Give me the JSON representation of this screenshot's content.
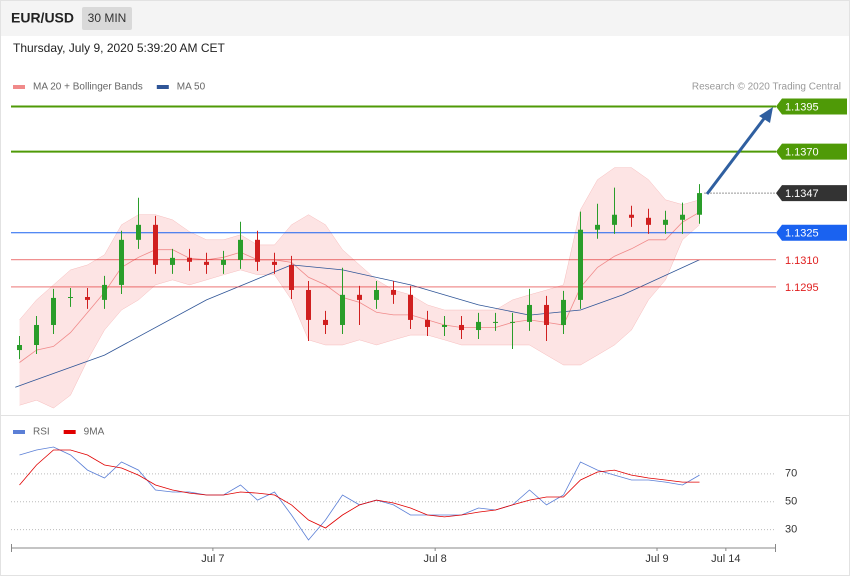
{
  "chart_data": [
    {
      "type": "candlestick",
      "title": "EUR/USD",
      "interval": "30 MIN",
      "subtitle": "Thursday, July 9, 2020 5:39:20 AM CET",
      "credit": "Research © 2020 Trading Central",
      "x": [
        2,
        6,
        10,
        14,
        18,
        22,
        26,
        30,
        34,
        38,
        42,
        46,
        50,
        54,
        58,
        62,
        66,
        70,
        74,
        78,
        82,
        86,
        90,
        94,
        98,
        102,
        106,
        110,
        114,
        118,
        122,
        126,
        130,
        134,
        138,
        142,
        146,
        150,
        154,
        158,
        162
      ],
      "open": [
        1.126,
        1.12628,
        1.12739,
        1.12889,
        1.12894,
        1.12878,
        1.12961,
        1.13211,
        1.13294,
        1.13072,
        1.13111,
        1.13089,
        1.13072,
        1.131,
        1.13211,
        1.13089,
        1.13072,
        1.12933,
        1.12767,
        1.12739,
        1.12906,
        1.12878,
        1.12933,
        1.12906,
        1.12767,
        1.12728,
        1.12739,
        1.12711,
        1.12756,
        1.12756,
        1.12756,
        1.1285,
        1.12739,
        1.12878,
        1.13267,
        1.13294,
        1.1335,
        1.13333,
        1.13294,
        1.13322,
        1.1335
      ],
      "high": [
        1.12678,
        1.12789,
        1.12939,
        1.12944,
        1.12944,
        1.13011,
        1.13261,
        1.13444,
        1.13344,
        1.13161,
        1.13161,
        1.13139,
        1.1315,
        1.13311,
        1.13261,
        1.13139,
        1.13122,
        1.12983,
        1.12817,
        1.13056,
        1.12956,
        1.12983,
        1.12983,
        1.12956,
        1.12817,
        1.12789,
        1.12789,
        1.12806,
        1.12806,
        1.12806,
        1.12939,
        1.129,
        1.12928,
        1.13367,
        1.13411,
        1.135,
        1.134,
        1.13383,
        1.13372,
        1.13417,
        1.1352
      ],
      "low": [
        1.1255,
        1.12578,
        1.12689,
        1.12839,
        1.12828,
        1.12828,
        1.12911,
        1.13161,
        1.13022,
        1.13022,
        1.13039,
        1.13022,
        1.13022,
        1.1305,
        1.13039,
        1.13022,
        1.12883,
        1.1265,
        1.12689,
        1.12689,
        1.12739,
        1.12828,
        1.12856,
        1.12717,
        1.12678,
        1.12678,
        1.12661,
        1.12661,
        1.12706,
        1.12606,
        1.12706,
        1.1265,
        1.12689,
        1.12828,
        1.13217,
        1.13244,
        1.13283,
        1.13244,
        1.13244,
        1.13244,
        1.133
      ],
      "close": [
        1.12628,
        1.12739,
        1.12889,
        1.12894,
        1.12878,
        1.12961,
        1.13211,
        1.13294,
        1.13072,
        1.13111,
        1.13089,
        1.13072,
        1.131,
        1.13211,
        1.13089,
        1.13072,
        1.12933,
        1.12767,
        1.12739,
        1.12906,
        1.12878,
        1.12933,
        1.12906,
        1.12767,
        1.12728,
        1.12739,
        1.12711,
        1.12756,
        1.12756,
        1.12756,
        1.1285,
        1.12739,
        1.12878,
        1.13267,
        1.13294,
        1.1335,
        1.13333,
        1.13294,
        1.13322,
        1.1335,
        1.1347
      ],
      "up_color": "#2a9d2a",
      "down_color": "#d01f1f",
      "bollinger": {
        "name": "MA 20 + Bollinger Bands",
        "color": "#f08a8a",
        "fill": "#fde4e4",
        "upper": [
          1.12767,
          1.12878,
          1.12961,
          1.13044,
          1.13072,
          1.13128,
          1.13294,
          1.1335,
          1.1335,
          1.13322,
          1.13256,
          1.13211,
          1.13211,
          1.13239,
          1.13183,
          1.13183,
          1.13294,
          1.1335,
          1.13294,
          1.13156,
          1.13072,
          1.12989,
          1.12933,
          1.12906,
          1.1285,
          1.12822,
          1.12822,
          1.12822,
          1.12822,
          1.12878,
          1.12906,
          1.12933,
          1.12961,
          1.13378,
          1.13544,
          1.13611,
          1.13611,
          1.13544,
          1.13433,
          1.13406,
          1.13433
        ],
        "middle": [
          1.12531,
          1.126,
          1.1262,
          1.12697,
          1.12808,
          1.1292,
          1.13058,
          1.13114,
          1.13156,
          1.13156,
          1.13109,
          1.131,
          1.13114,
          1.13142,
          1.131,
          1.131,
          1.13086,
          1.13003,
          1.12961,
          1.12892,
          1.12864,
          1.12809,
          1.12795,
          1.12795,
          1.12767,
          1.12739,
          1.12725,
          1.12725,
          1.12725,
          1.12753,
          1.12767,
          1.12753,
          1.12739,
          1.12948,
          1.13058,
          1.1312,
          1.13161,
          1.13211,
          1.13211,
          1.13309,
          1.13364
        ],
        "lower": [
          1.12294,
          1.12322,
          1.12278,
          1.1235,
          1.12544,
          1.12711,
          1.12822,
          1.12878,
          1.12961,
          1.12989,
          1.12961,
          1.12989,
          1.13017,
          1.13044,
          1.13017,
          1.13017,
          1.12878,
          1.12656,
          1.12628,
          1.12628,
          1.12656,
          1.12628,
          1.12656,
          1.12683,
          1.12683,
          1.12656,
          1.12628,
          1.12628,
          1.12628,
          1.12628,
          1.12628,
          1.12572,
          1.12517,
          1.12517,
          1.12572,
          1.12628,
          1.12711,
          1.12878,
          1.12989,
          1.13211,
          1.13294
        ]
      },
      "ma50": {
        "name": "MA 50",
        "color": "#2f5597",
        "x": [
          1,
          22,
          46,
          66,
          78,
          94,
          110,
          122,
          134,
          144,
          162
        ],
        "values": [
          1.12394,
          1.12572,
          1.12878,
          1.13072,
          1.13044,
          1.12961,
          1.1285,
          1.12794,
          1.12822,
          1.12906,
          1.131
        ]
      },
      "levels": [
        {
          "value": 1.1395,
          "label": "1.1395",
          "color": "#4f9a07",
          "line": "solid",
          "tag": "box",
          "width": 2
        },
        {
          "value": 1.137,
          "label": "1.1370",
          "color": "#4f9a07",
          "line": "solid",
          "tag": "box",
          "width": 2
        },
        {
          "value": 1.1347,
          "label": "1.1347",
          "color": "#333333",
          "line": "dotted",
          "tag": "box",
          "width": 1
        },
        {
          "value": 1.1325,
          "label": "1.1325",
          "color": "#1a62f0",
          "line": "solid",
          "tag": "box",
          "width": 1
        },
        {
          "value": 1.131,
          "label": "1.1310",
          "color": "#e02020",
          "line": "solid",
          "tag": "text",
          "width": 0.6
        },
        {
          "value": 1.1295,
          "label": "1.1295",
          "color": "#e02020",
          "line": "solid",
          "tag": "text",
          "width": 0.6
        }
      ],
      "xlim": [
        0,
        180
      ],
      "ylim": [
        1.1224,
        1.1418
      ]
    },
    {
      "type": "line",
      "x": [
        2,
        6,
        10,
        14,
        18,
        22,
        26,
        30,
        34,
        38,
        42,
        46,
        50,
        54,
        58,
        62,
        66,
        70,
        74,
        78,
        82,
        86,
        90,
        94,
        98,
        102,
        106,
        110,
        114,
        118,
        122,
        126,
        130,
        134,
        138,
        142,
        146,
        150,
        154,
        158,
        162
      ],
      "series": [
        {
          "name": "RSI",
          "color": "#5b7fd6",
          "values": [
            83.5,
            87.1,
            89.2,
            83.5,
            72.7,
            67.0,
            78.5,
            72.7,
            58.4,
            57.0,
            57.0,
            54.8,
            54.8,
            62.0,
            51.2,
            57.0,
            40.5,
            22.6,
            36.9,
            54.8,
            47.7,
            51.2,
            47.7,
            40.5,
            40.5,
            40.5,
            40.5,
            45.5,
            44.1,
            47.7,
            58.4,
            47.7,
            54.8,
            78.5,
            72.7,
            69.1,
            65.6,
            65.6,
            64.1,
            62.0,
            69.1
          ]
        },
        {
          "name": "9MA",
          "color": "#e00000",
          "values": [
            62.0,
            76.3,
            87.1,
            87.1,
            83.5,
            76.3,
            74.2,
            69.1,
            62.0,
            58.4,
            56.2,
            54.8,
            54.8,
            57.0,
            56.2,
            54.8,
            47.7,
            36.9,
            31.2,
            40.5,
            47.7,
            51.2,
            49.1,
            45.5,
            40.5,
            39.1,
            40.5,
            42.6,
            44.1,
            47.7,
            51.2,
            53.4,
            53.4,
            65.6,
            71.3,
            72.7,
            69.1,
            67.0,
            65.6,
            64.1,
            64.1
          ]
        }
      ],
      "xlim": [
        0,
        180
      ],
      "ylim": [
        19,
        110
      ],
      "yticks": [
        70,
        50,
        30
      ],
      "grid": true,
      "xticks": [
        {
          "value": 47.5,
          "label": "Jul 7"
        },
        {
          "value": 99.8,
          "label": "Jul 8"
        },
        {
          "value": 152,
          "label": "Jul 9"
        },
        {
          "value": 168.2,
          "label": "Jul 14"
        }
      ]
    }
  ]
}
